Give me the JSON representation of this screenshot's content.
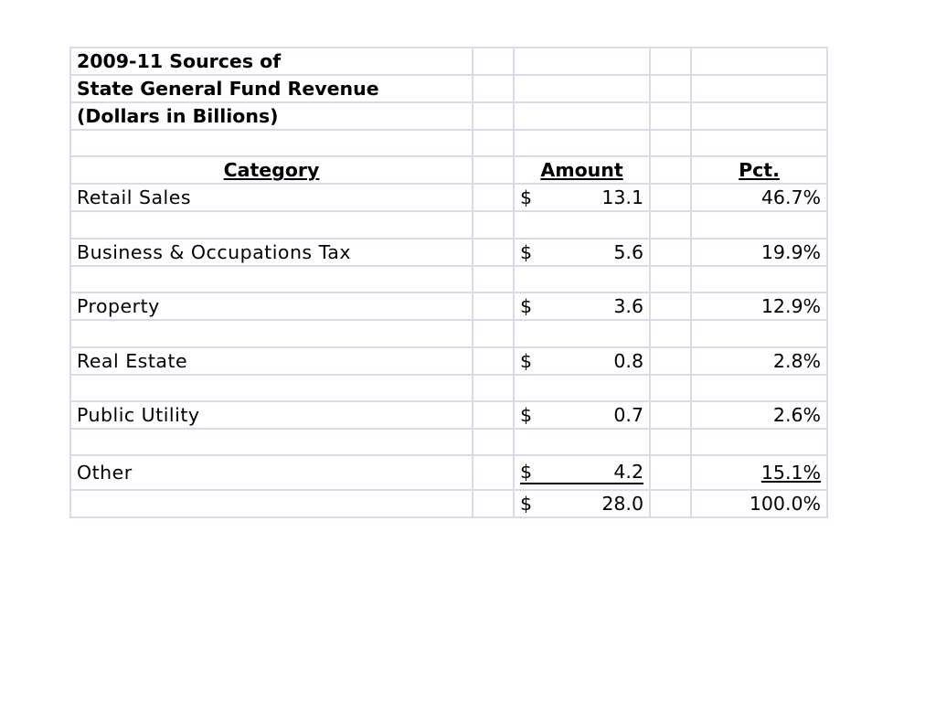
{
  "title_lines": [
    "2009-11 Sources of",
    "State General Fund Revenue",
    "(Dollars in Billions)"
  ],
  "headers": {
    "category": "Category",
    "amount": "Amount",
    "pct": "Pct."
  },
  "currency_symbol": "$",
  "rows": [
    {
      "category": "Retail Sales",
      "amount": "13.1",
      "pct": "46.7%"
    },
    {
      "category": "Business & Occupations Tax",
      "amount": "5.6",
      "pct": "19.9%"
    },
    {
      "category": "Property",
      "amount": "3.6",
      "pct": "12.9%"
    },
    {
      "category": "Real Estate",
      "amount": "0.8",
      "pct": "2.8%"
    },
    {
      "category": "Public Utility",
      "amount": "0.7",
      "pct": "2.6%"
    },
    {
      "category": "Other",
      "amount": "4.2",
      "pct": "15.1%"
    }
  ],
  "total": {
    "amount": "28.0",
    "pct": "100.0%"
  },
  "colors": {
    "gridline": "#d9dce8",
    "text": "#000000",
    "background": "#ffffff"
  }
}
